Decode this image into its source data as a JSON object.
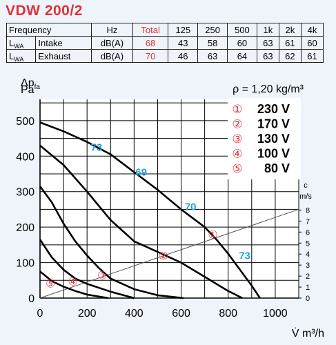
{
  "title": "VDW 200/2",
  "table": {
    "header": [
      "Frequency",
      "Hz",
      "Total",
      "125",
      "250",
      "500",
      "1k",
      "2k",
      "4k"
    ],
    "rows": [
      {
        "symbol": "L",
        "subscript": "WA",
        "name": "Intake",
        "unit": "dB(A)",
        "total": "68",
        "values": [
          "43",
          "58",
          "60",
          "63",
          "61",
          "60"
        ]
      },
      {
        "symbol": "L",
        "subscript": "WA",
        "name": "Exhaust",
        "unit": "dB(A)",
        "total": "70",
        "values": [
          "46",
          "63",
          "64",
          "63",
          "62",
          "61"
        ]
      }
    ]
  },
  "chart_data": {
    "type": "line",
    "ylabel_main": "Δp",
    "ylabel_sub": "fa",
    "yunit": "Pa",
    "xlabel": "V̇ m³/h",
    "density": "ρ = 1,20 kg/m³",
    "xlim": [
      0,
      1100
    ],
    "ylim": [
      0,
      560
    ],
    "x_ticks": [
      0,
      200,
      400,
      600,
      800,
      1000
    ],
    "y_ticks": [
      0,
      100,
      200,
      300,
      400,
      500
    ],
    "grid": true,
    "right_axis": {
      "label_line1": "c",
      "label_line2": "m/s",
      "ticks": [
        0,
        1,
        2,
        3,
        4,
        5,
        6,
        7,
        8
      ],
      "pa_per_ms": 31
    },
    "legend": [
      {
        "marker": "①",
        "label": "230 V"
      },
      {
        "marker": "②",
        "label": "170 V"
      },
      {
        "marker": "③",
        "label": "130 V"
      },
      {
        "marker": "④",
        "label": "100 V"
      },
      {
        "marker": "⑤",
        "label": "80 V"
      }
    ],
    "series": [
      {
        "marker": "①",
        "label_at": [
          735,
          180
        ],
        "points": [
          [
            0,
            495
          ],
          [
            100,
            470
          ],
          [
            200,
            440
          ],
          [
            300,
            405
          ],
          [
            400,
            355
          ],
          [
            500,
            305
          ],
          [
            600,
            250
          ],
          [
            700,
            200
          ],
          [
            750,
            165
          ],
          [
            800,
            125
          ],
          [
            850,
            80
          ],
          [
            900,
            35
          ],
          [
            935,
            0
          ]
        ]
      },
      {
        "marker": "②",
        "label_at": [
          525,
          120
        ],
        "points": [
          [
            0,
            430
          ],
          [
            100,
            375
          ],
          [
            200,
            300
          ],
          [
            300,
            220
          ],
          [
            400,
            160
          ],
          [
            500,
            130
          ],
          [
            600,
            100
          ],
          [
            700,
            60
          ],
          [
            800,
            20
          ],
          [
            860,
            0
          ]
        ]
      },
      {
        "marker": "③",
        "label_at": [
          265,
          65
        ],
        "points": [
          [
            0,
            315
          ],
          [
            50,
            270
          ],
          [
            100,
            210
          ],
          [
            150,
            160
          ],
          [
            200,
            120
          ],
          [
            250,
            85
          ],
          [
            300,
            55
          ],
          [
            400,
            25
          ],
          [
            500,
            8
          ],
          [
            610,
            0
          ]
        ]
      },
      {
        "marker": "④",
        "label_at": [
          140,
          48
        ],
        "points": [
          [
            0,
            165
          ],
          [
            50,
            115
          ],
          [
            100,
            80
          ],
          [
            150,
            55
          ],
          [
            200,
            40
          ],
          [
            300,
            18
          ],
          [
            400,
            0
          ]
        ]
      },
      {
        "marker": "⑤",
        "label_at": [
          45,
          42
        ],
        "points": [
          [
            0,
            75
          ],
          [
            50,
            48
          ],
          [
            100,
            32
          ],
          [
            150,
            20
          ],
          [
            200,
            10
          ],
          [
            290,
            0
          ]
        ]
      }
    ],
    "system_line": {
      "points": [
        [
          0,
          0
        ],
        [
          1100,
          250
        ]
      ]
    },
    "sound_labels": [
      {
        "text": "73",
        "at": [
          240,
          425
        ]
      },
      {
        "text": "69",
        "at": [
          430,
          355
        ]
      },
      {
        "text": "70",
        "at": [
          640,
          258
        ]
      },
      {
        "text": "73",
        "at": [
          870,
          120
        ]
      }
    ]
  }
}
